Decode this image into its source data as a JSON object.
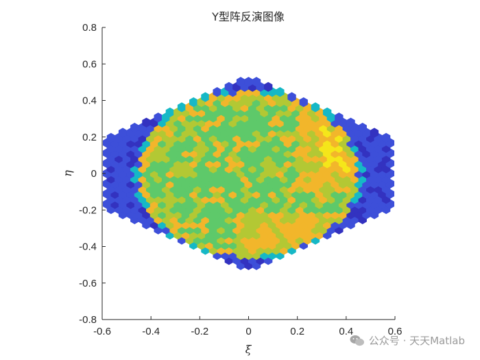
{
  "chart_data": {
    "type": "heatmap",
    "title": "Y型阵反演图像",
    "xlabel": "ξ",
    "ylabel": "η",
    "xlim": [
      -0.6,
      0.6
    ],
    "ylim": [
      -0.8,
      0.8
    ],
    "xticks": [
      "-0.6",
      "-0.4",
      "-0.2",
      "0",
      "0.2",
      "0.4",
      "0.6"
    ],
    "yticks": [
      "0.8",
      "0.6",
      "0.4",
      "0.2",
      "0",
      "-0.2",
      "-0.4",
      "-0.6",
      "-0.8"
    ],
    "grid": false,
    "colormap": "parula",
    "hex_layout": {
      "hexagon_max_x": 0.58,
      "disk_radius": 0.45,
      "cell_spacing": 0.0186
    },
    "colors": {
      "outer_blue": "#3d4fd9",
      "dark_blue": "#3332c0",
      "cyan": "#16b8c6",
      "green": "#5ec96a",
      "yellow_green": "#b3c834",
      "orange": "#f2b62b",
      "yellow": "#f5e61a"
    }
  },
  "watermark": {
    "text": "公众号 · 天天Matlab",
    "icon": "wechat-icon"
  }
}
